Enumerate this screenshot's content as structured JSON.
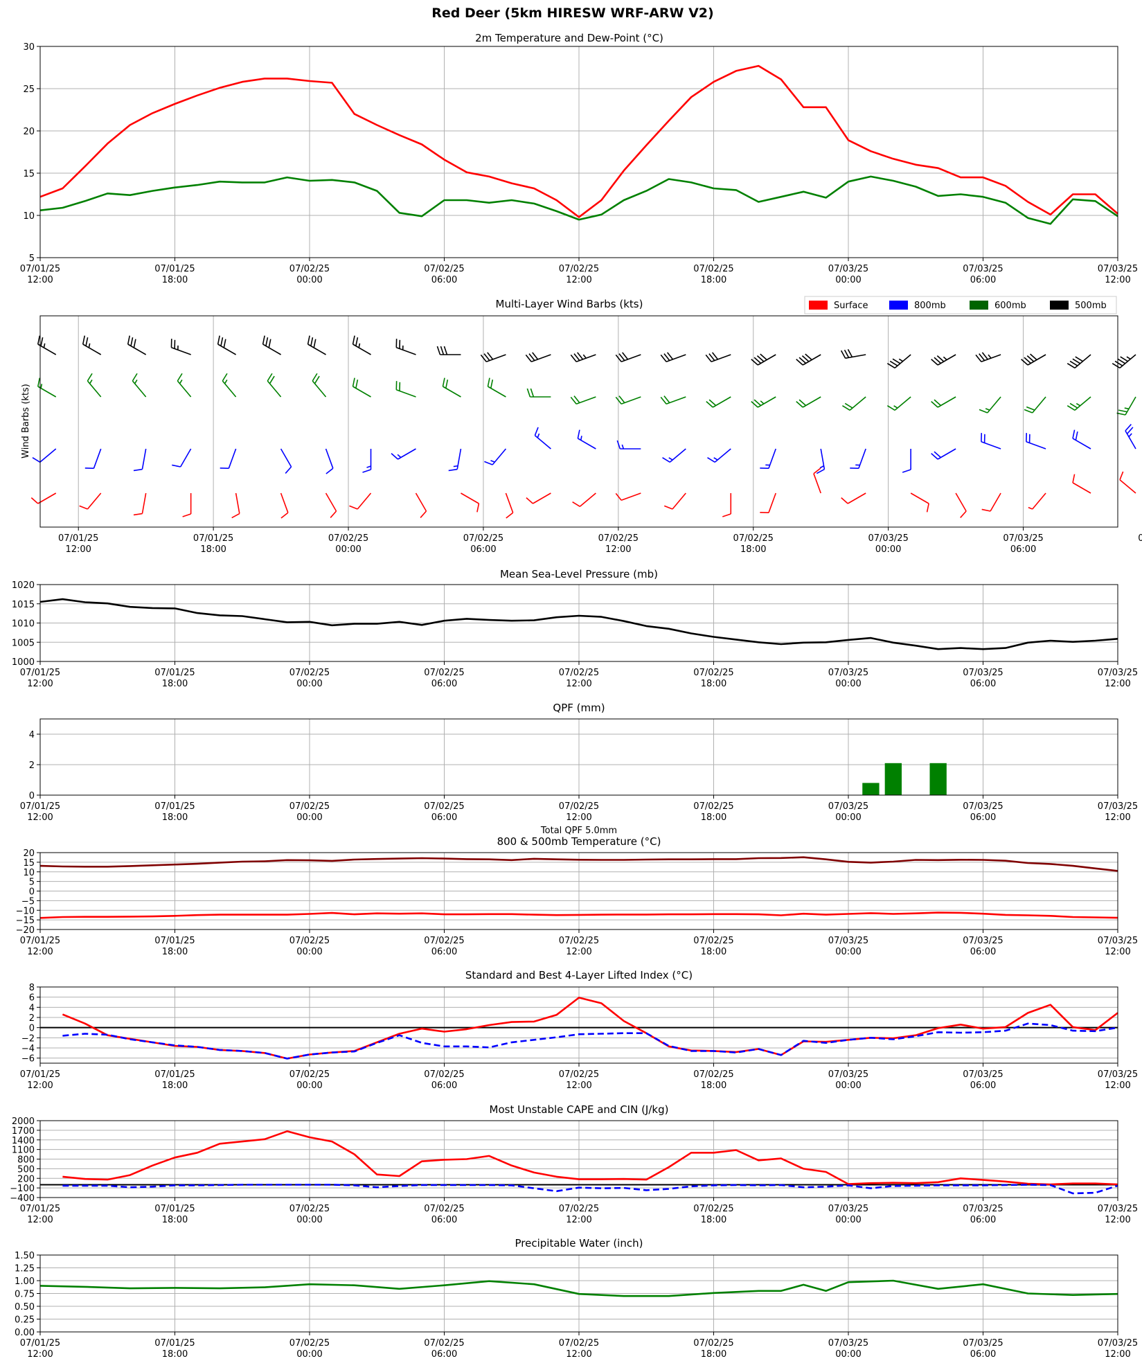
{
  "page": {
    "title": "Red Deer (5km HIRESW WRF-ARW V2)"
  },
  "time_labels": [
    "07/01/25\n12:00",
    "07/01/25\n18:00",
    "07/02/25\n00:00",
    "07/02/25\n06:00",
    "07/02/25\n12:00",
    "07/02/25\n18:00",
    "07/03/25\n00:00",
    "07/03/25\n06:00",
    "07/03/25\n12:00"
  ],
  "colors": {
    "red": "#ff0000",
    "green": "#008000",
    "blue": "#0000ff",
    "black": "#000000",
    "darkred": "#800000"
  },
  "chart_data": [
    {
      "id": "temp",
      "type": "line",
      "title": "2m Temperature and Dew-Point (°C)",
      "ylim": [
        5,
        30
      ],
      "yticks": [
        5,
        10,
        15,
        20,
        25,
        30
      ],
      "grid": true,
      "x_hours": [
        0,
        1,
        2,
        3,
        4,
        5,
        6,
        7,
        8,
        9,
        10,
        11,
        12,
        13,
        14,
        15,
        16,
        17,
        18,
        19,
        20,
        21,
        22,
        23,
        24,
        25,
        26,
        27,
        28,
        29,
        30,
        31,
        32,
        33,
        34,
        35,
        36,
        37,
        38,
        39,
        40,
        41,
        42,
        43,
        44,
        45,
        46,
        47,
        48
      ],
      "series": [
        {
          "color": "red",
          "values": [
            12.2,
            13.2,
            15.8,
            18.5,
            20.7,
            22.1,
            23.2,
            24.2,
            25.1,
            25.8,
            26.2,
            26.2,
            25.9,
            25.7,
            22.0,
            20.7,
            19.5,
            18.4,
            16.6,
            15.1,
            14.6,
            13.8,
            13.2,
            11.8,
            9.8,
            11.8,
            15.3,
            18.3,
            21.2,
            24.0,
            25.8,
            27.1,
            27.7,
            26.1,
            22.8,
            22.8,
            18.9,
            17.6,
            16.7,
            16.0,
            15.6,
            14.5,
            14.5,
            13.5,
            11.6,
            10.1,
            12.5,
            12.5,
            10.2
          ]
        },
        {
          "color": "green",
          "values": [
            10.6,
            10.9,
            11.7,
            12.6,
            12.4,
            12.9,
            13.3,
            13.6,
            14.0,
            13.9,
            13.9,
            14.5,
            14.1,
            14.2,
            13.9,
            12.9,
            10.3,
            9.9,
            11.8,
            11.8,
            11.5,
            11.8,
            11.4,
            10.5,
            9.5,
            10.1,
            11.8,
            12.9,
            14.3,
            13.9,
            13.2,
            13.0,
            11.6,
            12.2,
            12.8,
            12.1,
            14.0,
            14.6,
            14.1,
            13.4,
            12.3,
            12.5,
            12.2,
            11.5,
            9.7,
            9.0,
            11.9,
            11.7,
            9.9
          ]
        }
      ]
    },
    {
      "id": "wind",
      "type": "wind_barbs",
      "title": "Multi-Layer Wind Barbs (kts)",
      "ylabel": "Wind Barbs (kts)",
      "legend": [
        {
          "label": "Surface",
          "color": "red"
        },
        {
          "label": "800mb",
          "color": "blue"
        },
        {
          "label": "600mb",
          "color": "green"
        },
        {
          "label": "500mb",
          "color": "black"
        }
      ],
      "x_hours_start": -1,
      "x_hours_step": 1,
      "count": 25,
      "levels": [
        {
          "name": "500mb",
          "color": "black",
          "dir": [
            300,
            300,
            300,
            290,
            300,
            300,
            300,
            300,
            290,
            270,
            250,
            250,
            250,
            250,
            250,
            250,
            240,
            240,
            260,
            230,
            240,
            250,
            240,
            230,
            230
          ],
          "speed": [
            25,
            25,
            30,
            25,
            30,
            30,
            30,
            25,
            25,
            30,
            30,
            30,
            35,
            30,
            30,
            30,
            40,
            40,
            30,
            35,
            35,
            35,
            40,
            40,
            45
          ]
        },
        {
          "name": "600mb",
          "color": "green",
          "dir": [
            300,
            320,
            320,
            320,
            320,
            320,
            320,
            300,
            290,
            300,
            300,
            270,
            250,
            250,
            250,
            240,
            240,
            240,
            230,
            230,
            240,
            220,
            220,
            230,
            210
          ],
          "speed": [
            15,
            15,
            15,
            15,
            15,
            20,
            20,
            20,
            20,
            20,
            20,
            20,
            20,
            20,
            20,
            20,
            25,
            20,
            20,
            15,
            20,
            15,
            20,
            25,
            25
          ]
        },
        {
          "name": "800mb",
          "color": "blue",
          "dir": [
            230,
            200,
            190,
            210,
            200,
            150,
            160,
            180,
            240,
            190,
            220,
            310,
            300,
            270,
            230,
            230,
            200,
            170,
            200,
            180,
            240,
            290,
            290,
            300,
            330
          ],
          "speed": [
            10,
            10,
            10,
            10,
            10,
            10,
            10,
            15,
            15,
            15,
            15,
            15,
            15,
            15,
            15,
            15,
            15,
            15,
            15,
            10,
            20,
            20,
            20,
            20,
            25
          ]
        },
        {
          "name": "Surface",
          "color": "red",
          "dir": [
            240,
            220,
            190,
            180,
            170,
            160,
            150,
            220,
            150,
            120,
            160,
            240,
            230,
            250,
            220,
            180,
            200,
            340,
            240,
            120,
            150,
            210,
            220,
            300,
            310
          ],
          "speed": [
            10,
            10,
            10,
            10,
            10,
            10,
            10,
            10,
            10,
            10,
            10,
            10,
            10,
            10,
            10,
            10,
            10,
            10,
            10,
            10,
            10,
            10,
            5,
            10,
            10
          ]
        }
      ]
    },
    {
      "id": "mslp",
      "type": "line",
      "title": "Mean Sea-Level Pressure (mb)",
      "ylim": [
        1000,
        1020
      ],
      "yticks": [
        1000,
        1005,
        1010,
        1015,
        1020
      ],
      "grid": true,
      "x_hours": [
        0,
        1,
        2,
        3,
        4,
        5,
        6,
        7,
        8,
        9,
        10,
        11,
        12,
        13,
        14,
        15,
        16,
        17,
        18,
        19,
        20,
        21,
        22,
        23,
        24,
        25,
        26,
        27,
        28,
        29,
        30,
        31,
        32,
        33,
        34,
        35,
        36,
        37,
        38,
        39,
        40,
        41,
        42,
        43,
        44,
        45,
        46,
        47,
        48
      ],
      "series": [
        {
          "color": "black",
          "values": [
            1015.5,
            1016.2,
            1015.4,
            1015.1,
            1014.2,
            1013.9,
            1013.8,
            1012.6,
            1012.0,
            1011.8,
            1011.0,
            1010.2,
            1010.3,
            1009.4,
            1009.8,
            1009.8,
            1010.3,
            1009.5,
            1010.6,
            1011.1,
            1010.8,
            1010.6,
            1010.7,
            1011.5,
            1011.9,
            1011.6,
            1010.5,
            1009.2,
            1008.5,
            1007.3,
            1006.4,
            1005.7,
            1005.0,
            1004.5,
            1004.9,
            1005.0,
            1005.6,
            1006.1,
            1004.9,
            1004.1,
            1003.2,
            1003.5,
            1003.2,
            1003.5,
            1004.9,
            1005.4,
            1005.1,
            1005.4,
            1005.9
          ]
        }
      ]
    },
    {
      "id": "qpf",
      "type": "bar",
      "title": "QPF (mm)",
      "footer": "Total QPF 5.0mm",
      "ylim": [
        0,
        5
      ],
      "yticks": [
        0,
        2,
        4
      ],
      "grid": true,
      "color": "green",
      "bars": [
        {
          "hour": 37,
          "value": 0.8
        },
        {
          "hour": 38,
          "value": 2.1
        },
        {
          "hour": 40,
          "value": 2.1
        }
      ]
    },
    {
      "id": "t850",
      "type": "line",
      "title": "800 & 500mb Temperature (°C)",
      "ylim": [
        -20,
        20
      ],
      "yticks": [
        -20,
        -15,
        -10,
        -5,
        0,
        5,
        10,
        15,
        20
      ],
      "grid": true,
      "x_hours": [
        0,
        1,
        2,
        3,
        4,
        5,
        6,
        7,
        8,
        9,
        10,
        11,
        12,
        13,
        14,
        15,
        16,
        17,
        18,
        19,
        20,
        21,
        22,
        23,
        24,
        25,
        26,
        27,
        28,
        29,
        30,
        31,
        32,
        33,
        34,
        35,
        36,
        37,
        38,
        39,
        40,
        41,
        42,
        43,
        44,
        45,
        46,
        47,
        48
      ],
      "series": [
        {
          "color": "darkred",
          "values": [
            13.1,
            12.8,
            12.7,
            12.7,
            13.0,
            13.4,
            13.8,
            14.2,
            14.8,
            15.3,
            15.5,
            16.1,
            16.0,
            15.7,
            16.4,
            16.7,
            16.9,
            17.1,
            16.9,
            16.6,
            16.5,
            16.1,
            16.8,
            16.5,
            16.3,
            16.2,
            16.2,
            16.4,
            16.5,
            16.5,
            16.6,
            16.6,
            17.1,
            17.2,
            17.6,
            16.5,
            15.2,
            14.8,
            15.3,
            16.2,
            16.1,
            16.3,
            16.2,
            15.8,
            14.6,
            14.1,
            13.1,
            11.8,
            10.5
          ]
        },
        {
          "color": "red",
          "values": [
            -14.0,
            -13.5,
            -13.4,
            -13.4,
            -13.3,
            -13.2,
            -12.9,
            -12.5,
            -12.3,
            -12.3,
            -12.3,
            -12.3,
            -11.9,
            -11.4,
            -12.1,
            -11.6,
            -11.8,
            -11.6,
            -12.1,
            -12.1,
            -12.0,
            -12.0,
            -12.3,
            -12.5,
            -12.4,
            -12.3,
            -12.2,
            -12.2,
            -12.1,
            -12.1,
            -12.0,
            -12.0,
            -12.1,
            -12.6,
            -11.8,
            -12.3,
            -11.9,
            -11.5,
            -11.9,
            -11.6,
            -11.2,
            -11.3,
            -11.8,
            -12.4,
            -12.6,
            -12.9,
            -13.5,
            -13.7,
            -13.9
          ]
        }
      ]
    },
    {
      "id": "li",
      "type": "line",
      "title": "Standard and Best 4-Layer Lifted Index (°C)",
      "ylim": [
        -7,
        8
      ],
      "yticks": [
        -6,
        -4,
        -2,
        0,
        2,
        4,
        6,
        8
      ],
      "grid": true,
      "zero_line": true,
      "x_hours": [
        1,
        2,
        3,
        4,
        5,
        6,
        7,
        8,
        9,
        10,
        11,
        12,
        13,
        14,
        15,
        16,
        17,
        18,
        19,
        20,
        21,
        22,
        23,
        24,
        25,
        26,
        27,
        28,
        29,
        30,
        31,
        32,
        33,
        34,
        35,
        36,
        37,
        38,
        39,
        40,
        41,
        42,
        43,
        44,
        45,
        46,
        47,
        48
      ],
      "series": [
        {
          "color": "red",
          "values": [
            2.6,
            0.8,
            -1.5,
            -2.2,
            -2.9,
            -3.6,
            -3.8,
            -4.4,
            -4.6,
            -5.0,
            -6.1,
            -5.3,
            -4.9,
            -4.6,
            -2.9,
            -1.2,
            -0.2,
            -0.8,
            -0.3,
            0.5,
            1.1,
            1.2,
            2.5,
            5.9,
            4.8,
            1.3,
            -1.1,
            -3.7,
            -4.5,
            -4.6,
            -4.8,
            -4.2,
            -5.4,
            -2.7,
            -2.8,
            -2.4,
            -2.0,
            -2.1,
            -1.5,
            -0.1,
            0.6,
            -0.2,
            0.1,
            2.9,
            4.5,
            0.1,
            -0.5,
            2.9
          ]
        },
        {
          "color": "blue",
          "dashed": true,
          "values": [
            -1.6,
            -1.2,
            -1.4,
            -2.3,
            -2.9,
            -3.5,
            -3.8,
            -4.4,
            -4.6,
            -5.0,
            -6.1,
            -5.3,
            -4.9,
            -4.7,
            -3.0,
            -1.5,
            -3.0,
            -3.7,
            -3.7,
            -3.9,
            -2.9,
            -2.4,
            -1.9,
            -1.3,
            -1.2,
            -1.1,
            -1.1,
            -3.6,
            -4.6,
            -4.6,
            -4.9,
            -4.2,
            -5.4,
            -2.6,
            -3.0,
            -2.4,
            -2.0,
            -2.3,
            -1.7,
            -0.9,
            -1.0,
            -0.9,
            -0.6,
            0.8,
            0.5,
            -0.6,
            -0.7,
            0.0
          ]
        }
      ]
    },
    {
      "id": "cape",
      "type": "line",
      "title": "Most Unstable CAPE and CIN (J/kg)",
      "ylim": [
        -400,
        2000
      ],
      "yticks": [
        -400,
        -100,
        200,
        500,
        800,
        1100,
        1400,
        1700,
        2000
      ],
      "grid": true,
      "zero_line": true,
      "x_hours": [
        1,
        2,
        3,
        4,
        5,
        6,
        7,
        8,
        9,
        10,
        11,
        12,
        13,
        14,
        15,
        16,
        17,
        18,
        19,
        20,
        21,
        22,
        23,
        24,
        25,
        26,
        27,
        28,
        29,
        30,
        31,
        32,
        33,
        34,
        35,
        36,
        37,
        38,
        39,
        40,
        41,
        42,
        43,
        44,
        45,
        46,
        47,
        48
      ],
      "series": [
        {
          "color": "red",
          "values": [
            250,
            180,
            160,
            300,
            600,
            850,
            1000,
            1280,
            1350,
            1420,
            1670,
            1480,
            1350,
            950,
            320,
            270,
            730,
            780,
            800,
            900,
            600,
            380,
            250,
            170,
            170,
            180,
            160,
            550,
            1000,
            1000,
            1080,
            760,
            820,
            500,
            400,
            20,
            50,
            60,
            50,
            80,
            200,
            150,
            100,
            30,
            10,
            40,
            40,
            10
          ]
        },
        {
          "color": "blue",
          "dashed": true,
          "values": [
            -30,
            -30,
            -30,
            -80,
            -60,
            -20,
            -20,
            -10,
            0,
            0,
            0,
            0,
            0,
            -20,
            -80,
            -40,
            -10,
            -10,
            -10,
            -10,
            -20,
            -110,
            -200,
            -90,
            -110,
            -100,
            -170,
            -130,
            -50,
            -20,
            -10,
            -20,
            -10,
            -80,
            -60,
            -20,
            -110,
            -40,
            -30,
            -20,
            -20,
            -20,
            -10,
            0,
            -10,
            -270,
            -250,
            -30
          ]
        }
      ]
    },
    {
      "id": "pw",
      "type": "line",
      "title": "Precipitable Water (inch)",
      "ylim": [
        0,
        1.5
      ],
      "yticks": [
        0.0,
        0.25,
        0.5,
        0.75,
        1.0,
        1.25,
        1.5
      ],
      "grid": true,
      "x_hours": [
        0,
        2,
        4,
        6,
        8,
        10,
        12,
        14,
        16,
        18,
        20,
        22,
        24,
        26,
        28,
        30,
        32,
        33,
        34,
        35,
        36,
        38,
        40,
        42,
        44,
        46,
        48
      ],
      "series": [
        {
          "color": "green",
          "values": [
            0.9,
            0.88,
            0.85,
            0.86,
            0.85,
            0.87,
            0.93,
            0.91,
            0.84,
            0.91,
            0.99,
            0.93,
            0.74,
            0.7,
            0.7,
            0.76,
            0.8,
            0.8,
            0.92,
            0.8,
            0.97,
            1.0,
            0.84,
            0.93,
            0.75,
            0.72,
            0.74
          ]
        }
      ]
    }
  ]
}
